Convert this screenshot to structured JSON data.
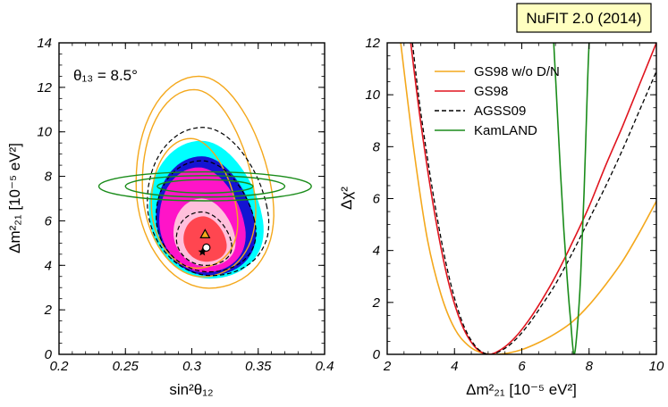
{
  "badge": {
    "text": "NuFIT 2.0 (2014)",
    "fill": "#ffffc0"
  },
  "colors": {
    "gs98_wo_dn": "#f4a81c",
    "gs98": "#e0141e",
    "agss09": "#000000",
    "kamland": "#1a8c1a",
    "region_cyan": "#00ffff",
    "region_blue": "#1414d2",
    "region_magenta": "#ff14c8",
    "region_pink": "#ffc0dc",
    "region_red": "#ff4650"
  },
  "chart_data": [
    {
      "type": "contour",
      "xlabel": "sin²θ₁₂",
      "ylabel": "Δm²₂₁ [10⁻⁵ eV²]",
      "annotation": "θ₁₃ = 8.5°",
      "xlim": [
        0.2,
        0.4
      ],
      "ylim": [
        0,
        14
      ],
      "x_ticks": [
        "0.2",
        "0.25",
        "0.3",
        "0.35",
        "0.4"
      ],
      "y_ticks": [
        "0",
        "2",
        "4",
        "6",
        "8",
        "10",
        "12",
        "14"
      ],
      "best_fit": {
        "triangle": [
          0.31,
          5.4
        ],
        "circle": [
          0.311,
          4.8
        ],
        "star": [
          0.308,
          4.6
        ]
      },
      "solar_gs98_wo_dn": [
        {
          "xmin": 0.272,
          "xmax": 0.336,
          "ymin": 3.4,
          "ymax": 9.7
        },
        {
          "xmin": 0.266,
          "xmax": 0.35,
          "ymin": 2.8,
          "ymax": 11.9
        },
        {
          "xmin": 0.262,
          "xmax": 0.364,
          "ymin": 2.2,
          "ymax": 12.5
        }
      ],
      "solar_agss09": [
        {
          "xmin": 0.29,
          "xmax": 0.331,
          "ymin": 3.8,
          "ymax": 6.4
        },
        {
          "xmin": 0.276,
          "xmax": 0.35,
          "ymin": 3.3,
          "ymax": 8.7
        },
        {
          "xmin": 0.27,
          "xmax": 0.36,
          "ymin": 3.0,
          "ymax": 10.2
        }
      ],
      "kamland_ellipses": [
        {
          "cx": 0.31,
          "cy": 7.55,
          "rx": 0.036,
          "ry": 0.3
        },
        {
          "cx": 0.31,
          "cy": 7.55,
          "rx": 0.06,
          "ry": 0.48
        },
        {
          "cx": 0.31,
          "cy": 7.55,
          "rx": 0.08,
          "ry": 0.65
        }
      ]
    },
    {
      "type": "line",
      "xlabel": "Δm²₂₁ [10⁻⁵ eV²]",
      "ylabel": "Δχ²",
      "xlim": [
        2,
        10
      ],
      "ylim": [
        0,
        12
      ],
      "x_ticks": [
        "2",
        "4",
        "6",
        "8",
        "10"
      ],
      "y_ticks": [
        "0",
        "2",
        "4",
        "6",
        "8",
        "10",
        "12"
      ],
      "series": [
        {
          "name": "GS98 w/o D/N",
          "key": "gs98_wo_dn",
          "x": [
            2.4,
            2.8,
            3.2,
            3.6,
            4.0,
            4.4,
            4.8,
            5.2,
            5.6,
            6.0,
            6.5,
            7.0,
            7.5,
            8.0,
            8.5,
            9.0,
            9.5,
            10.0
          ],
          "y": [
            12,
            7.8,
            4.4,
            2.3,
            1.0,
            0.35,
            0.06,
            0.0,
            0.05,
            0.18,
            0.45,
            0.8,
            1.25,
            1.9,
            2.7,
            3.6,
            4.7,
            5.9
          ]
        },
        {
          "name": "GS98",
          "key": "gs98",
          "x": [
            2.7,
            3.0,
            3.4,
            3.8,
            4.2,
            4.6,
            5.0,
            5.4,
            5.8,
            6.2,
            6.6,
            7.0,
            7.5,
            8.0,
            8.5,
            9.0,
            9.5,
            10.0
          ],
          "y": [
            12,
            8.9,
            5.5,
            2.9,
            1.2,
            0.3,
            0.0,
            0.2,
            0.65,
            1.3,
            2.1,
            3.0,
            4.3,
            5.7,
            7.3,
            8.8,
            10.4,
            12.0
          ]
        },
        {
          "name": "AGSS09",
          "key": "agss09",
          "x": [
            2.75,
            3.0,
            3.4,
            3.8,
            4.2,
            4.6,
            5.0,
            5.4,
            5.8,
            6.2,
            6.6,
            7.0,
            7.5,
            8.0,
            8.5,
            9.0,
            9.5,
            10.0
          ],
          "y": [
            12,
            9.3,
            5.9,
            3.2,
            1.35,
            0.35,
            0.0,
            0.15,
            0.55,
            1.15,
            1.9,
            2.7,
            3.9,
            5.2,
            6.5,
            7.9,
            9.4,
            10.9
          ]
        },
        {
          "name": "KamLAND",
          "key": "kamland",
          "x": [
            6.95,
            7.05,
            7.15,
            7.25,
            7.35,
            7.45,
            7.55,
            7.65,
            7.75,
            7.85,
            7.95,
            8.0
          ],
          "y": [
            12,
            9.5,
            7.0,
            4.8,
            2.9,
            1.3,
            0.0,
            1.0,
            3.0,
            6.2,
            10.3,
            12
          ]
        }
      ],
      "legend": "top-right"
    }
  ]
}
